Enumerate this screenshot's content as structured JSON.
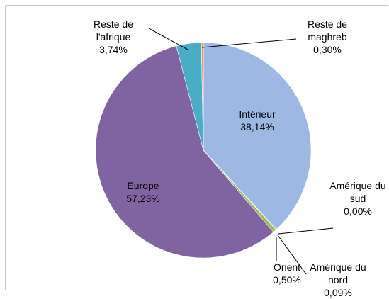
{
  "chart_data": {
    "type": "pie",
    "categories": [
      "Intérieur",
      "Amérique du sud",
      "Amérique du nord",
      "Orient",
      "Europe",
      "Reste de l'afrique",
      "Reste de maghreb"
    ],
    "values": [
      38.14,
      0.0,
      0.09,
      0.5,
      57.23,
      3.74,
      0.3
    ],
    "value_labels": [
      "38,14%",
      "0,00%",
      "0,09%",
      "0,50%",
      "57,23%",
      "3,74%",
      "0,30%"
    ],
    "colors": [
      "#9db9e3",
      "#4f81bd",
      "#c0504d",
      "#9bbb59",
      "#8064a2",
      "#4bacc6",
      "#f79646"
    ]
  }
}
